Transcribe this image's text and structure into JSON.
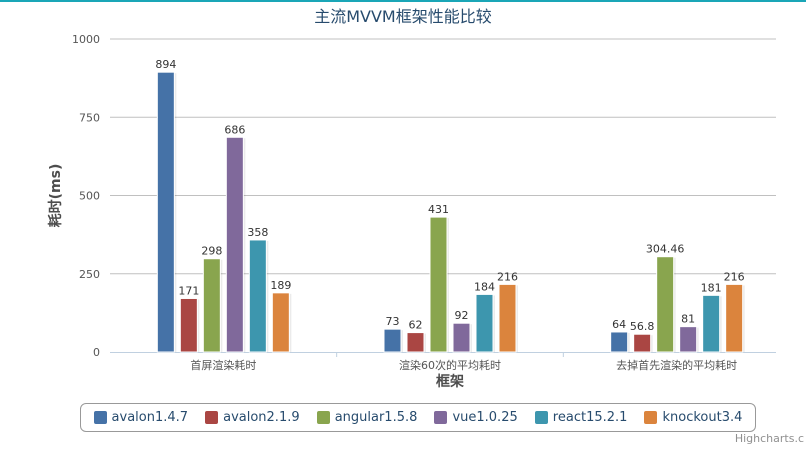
{
  "chart_data": {
    "type": "bar",
    "title": "主流MVVM框架性能比较",
    "xlabel": "框架",
    "ylabel": "耗时(ms)",
    "ylim": [
      0,
      1000
    ],
    "yticks": [
      0,
      250,
      500,
      750,
      1000
    ],
    "categories": [
      "首屏渲染耗时",
      "渲染60次的平均耗时",
      "去掉首先渲染的平均耗时"
    ],
    "series": [
      {
        "name": "avalon1.4.7",
        "color": "#4572a7",
        "values": [
          894,
          73,
          64
        ]
      },
      {
        "name": "avalon2.1.9",
        "color": "#aa4643",
        "values": [
          171,
          62,
          56.8
        ]
      },
      {
        "name": "angular1.5.8",
        "color": "#89a54e",
        "values": [
          298,
          431,
          304.46
        ]
      },
      {
        "name": "vue1.0.25",
        "color": "#80699b",
        "values": [
          686,
          92,
          81
        ]
      },
      {
        "name": "react15.2.1",
        "color": "#3d96ae",
        "values": [
          358,
          184,
          181
        ]
      },
      {
        "name": "knockout3.4",
        "color": "#db843d",
        "values": [
          189,
          216,
          216
        ]
      }
    ],
    "grid": true,
    "legend": "bottom"
  },
  "credit": "Highcharts.c"
}
